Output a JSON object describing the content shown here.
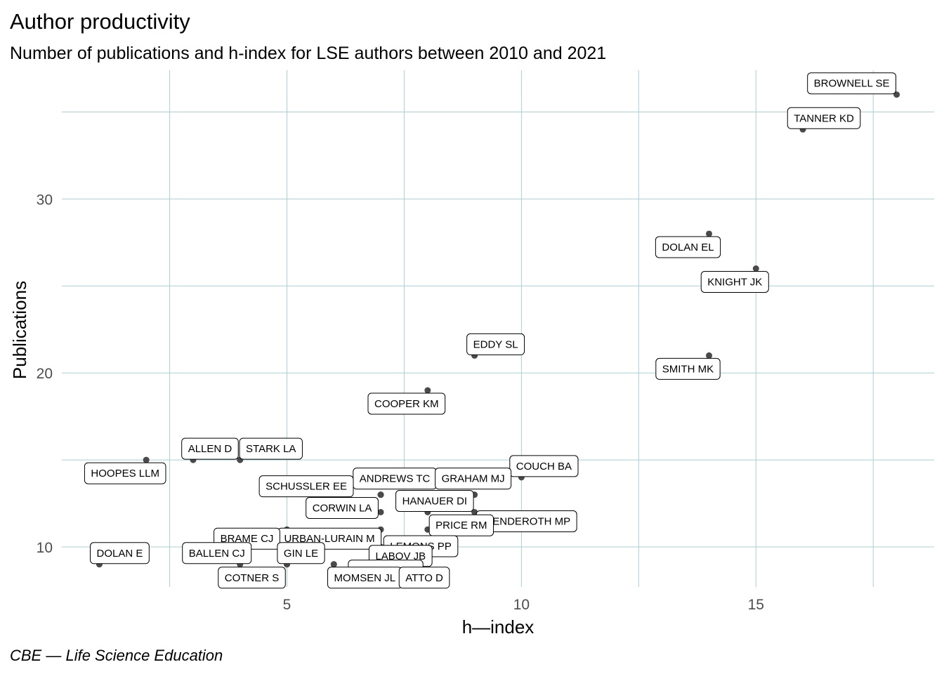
{
  "chart_data": {
    "type": "scatter",
    "title": "Author productivity",
    "subtitle": "Number of publications and h-index for LSE authors between 2010 and 2021",
    "xlabel": "h—index",
    "ylabel": "Publications",
    "caption": "CBE — Life Science Education",
    "xlim": [
      0.2,
      18.8
    ],
    "ylim": [
      7.7,
      37.4
    ],
    "xticks": [
      5,
      10,
      15
    ],
    "yticks": [
      10,
      20,
      30
    ],
    "grid": true,
    "colors": {
      "grid": "#a9d0d6",
      "point": "#4a4a4a",
      "label_border": "#000000"
    },
    "points": [
      {
        "label": "BROWNELL SE",
        "x": 18,
        "y": 36
      },
      {
        "label": "TANNER KD",
        "x": 16,
        "y": 34
      },
      {
        "label": "DOLAN EL",
        "x": 14,
        "y": 28
      },
      {
        "label": "KNIGHT JK",
        "x": 15,
        "y": 26
      },
      {
        "label": "SMITH MK",
        "x": 14,
        "y": 21
      },
      {
        "label": "EDDY SL",
        "x": 9,
        "y": 21
      },
      {
        "label": "COOPER KM",
        "x": 8,
        "y": 19
      },
      {
        "label": "ALLEN D",
        "x": 3,
        "y": 15
      },
      {
        "label": "STARK LA",
        "x": 4,
        "y": 15
      },
      {
        "label": "HOOPES LLM",
        "x": 2,
        "y": 15
      },
      {
        "label": "COUCH BA",
        "x": 10,
        "y": 14
      },
      {
        "label": "ANDREWS TC",
        "x": 7,
        "y": 13
      },
      {
        "label": "GRAHAM MJ",
        "x": 9,
        "y": 13
      },
      {
        "label": "SCHUSSLER EE",
        "x": 7,
        "y": 13
      },
      {
        "label": "HANAUER DI",
        "x": 8,
        "y": 12
      },
      {
        "label": "WENDEROTH MP",
        "x": 9,
        "y": 12
      },
      {
        "label": "CORWIN LA",
        "x": 7,
        "y": 12
      },
      {
        "label": "PRICE RM",
        "x": 8,
        "y": 11
      },
      {
        "label": "URBAN-LURAIN M",
        "x": 7,
        "y": 11
      },
      {
        "label": "BRAME CJ",
        "x": 5,
        "y": 11
      },
      {
        "label": "LEMONS PP",
        "x": 7,
        "y": 10
      },
      {
        "label": "DOLAN E",
        "x": 1,
        "y": 9
      },
      {
        "label": "BALLEN CJ",
        "x": 4,
        "y": 9
      },
      {
        "label": "GIN LE",
        "x": 5,
        "y": 9
      },
      {
        "label": "LABOV JB",
        "x": 6,
        "y": 9
      },
      {
        "label": "BARNES ME",
        "x": 7,
        "y": 9
      },
      {
        "label": "COTNER S",
        "x": 5,
        "y": 9
      },
      {
        "label": "MOMSEN JL",
        "x": 6,
        "y": 9
      },
      {
        "label": "ATTO D",
        "x": 7,
        "y": 9
      }
    ]
  }
}
